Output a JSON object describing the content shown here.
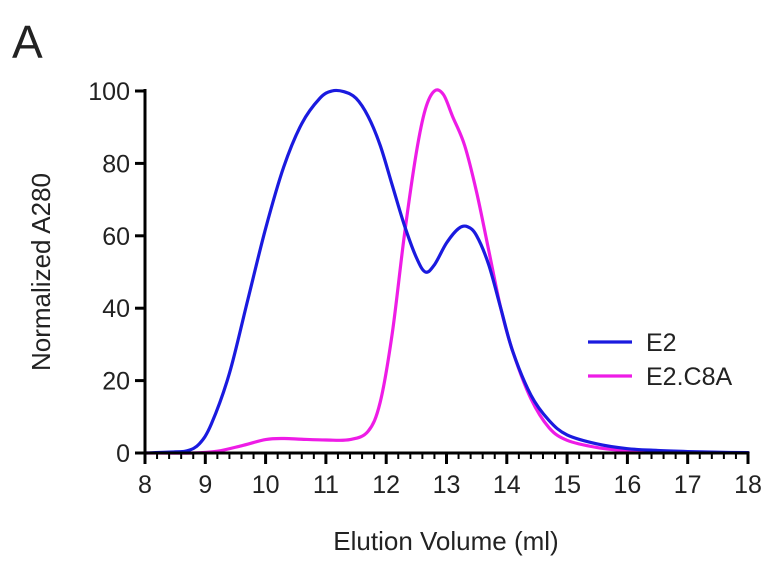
{
  "panel_label": "A",
  "chart_data": {
    "type": "line",
    "title": "",
    "xlabel": "Elution Volume (ml)",
    "ylabel": "Normalized A280",
    "xlim": [
      8,
      18
    ],
    "ylim": [
      0,
      100
    ],
    "xticks": [
      8,
      9,
      10,
      11,
      12,
      13,
      14,
      15,
      16,
      17,
      18
    ],
    "yticks": [
      0,
      20,
      40,
      60,
      80,
      100
    ],
    "grid": false,
    "legend_position": "right",
    "series": [
      {
        "name": "E2",
        "color": "#1a1adf",
        "x": [
          8.0,
          8.5,
          8.7,
          8.9,
          9.1,
          9.4,
          9.7,
          10.0,
          10.3,
          10.6,
          10.9,
          11.1,
          11.3,
          11.5,
          11.7,
          11.9,
          12.1,
          12.3,
          12.5,
          12.65,
          12.8,
          13.0,
          13.2,
          13.35,
          13.5,
          13.7,
          13.9,
          14.1,
          14.4,
          14.7,
          15.0,
          15.5,
          16.0,
          16.5,
          17.0,
          17.5,
          18.0
        ],
        "y": [
          0.0,
          0.3,
          0.6,
          2.5,
          8.0,
          22.0,
          42.0,
          62.0,
          79.0,
          91.0,
          98.0,
          100.0,
          99.8,
          98.0,
          93.0,
          85.0,
          74.0,
          63.0,
          54.0,
          50.0,
          52.0,
          58.0,
          62.0,
          62.5,
          60.0,
          52.0,
          40.0,
          28.0,
          16.0,
          9.0,
          5.0,
          2.5,
          1.2,
          0.7,
          0.4,
          0.2,
          0.1
        ]
      },
      {
        "name": "E2.C8A",
        "color": "#ee1ce6",
        "x": [
          8.0,
          8.8,
          9.2,
          9.6,
          10.0,
          10.3,
          10.6,
          11.0,
          11.4,
          11.7,
          11.9,
          12.1,
          12.3,
          12.5,
          12.65,
          12.8,
          12.95,
          13.1,
          13.3,
          13.5,
          13.7,
          13.9,
          14.1,
          14.4,
          14.7,
          15.0,
          15.5,
          16.0,
          16.5,
          17.0,
          17.5,
          18.0
        ],
        "y": [
          0.0,
          0.0,
          0.5,
          2.0,
          3.7,
          4.0,
          3.8,
          3.6,
          3.7,
          6.0,
          14.0,
          33.0,
          60.0,
          83.0,
          95.0,
          100.0,
          99.0,
          93.0,
          85.0,
          72.0,
          56.0,
          40.0,
          28.0,
          15.0,
          7.0,
          3.5,
          1.5,
          0.6,
          0.3,
          0.2,
          0.1,
          0.05
        ]
      }
    ]
  }
}
